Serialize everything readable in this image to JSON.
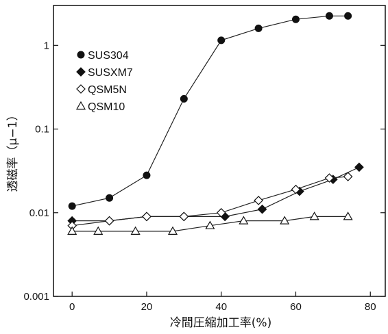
{
  "chart_data": {
    "type": "line",
    "title": "",
    "xlabel": "冷間圧縮加工率(%)",
    "ylabel": "透磁率（μ−1）",
    "xlim": [
      -5,
      84
    ],
    "ylim": [
      0.001,
      3
    ],
    "yscale": "log",
    "x_ticks": [
      "0",
      "20",
      "40",
      "60",
      "80"
    ],
    "y_ticks": [
      "0.001",
      "0.01",
      "0.1",
      "1"
    ],
    "legend_position": "top-left",
    "grid": false,
    "series": [
      {
        "name": "SUS304",
        "marker": "filled-circle",
        "x": [
          0,
          10,
          20,
          30,
          40,
          50,
          60,
          69,
          74
        ],
        "y": [
          0.012,
          0.015,
          0.028,
          0.23,
          1.15,
          1.6,
          2.05,
          2.25,
          2.25
        ]
      },
      {
        "name": "SUSXM7",
        "marker": "filled-diamond",
        "x": [
          0,
          10,
          20,
          30,
          41,
          51,
          61,
          70,
          77
        ],
        "y": [
          0.008,
          0.008,
          0.009,
          0.009,
          0.009,
          0.011,
          0.018,
          0.025,
          0.035
        ]
      },
      {
        "name": "QSM5N",
        "marker": "open-diamond",
        "x": [
          0,
          10,
          20,
          30,
          40,
          50,
          60,
          69,
          74
        ],
        "y": [
          0.007,
          0.008,
          0.009,
          0.009,
          0.01,
          0.014,
          0.019,
          0.026,
          0.027
        ]
      },
      {
        "name": "QSM10",
        "marker": "open-triangle",
        "x": [
          0,
          7,
          17,
          27,
          37,
          46,
          57,
          65,
          74
        ],
        "y": [
          0.006,
          0.006,
          0.006,
          0.006,
          0.007,
          0.008,
          0.008,
          0.009,
          0.009
        ]
      }
    ]
  }
}
